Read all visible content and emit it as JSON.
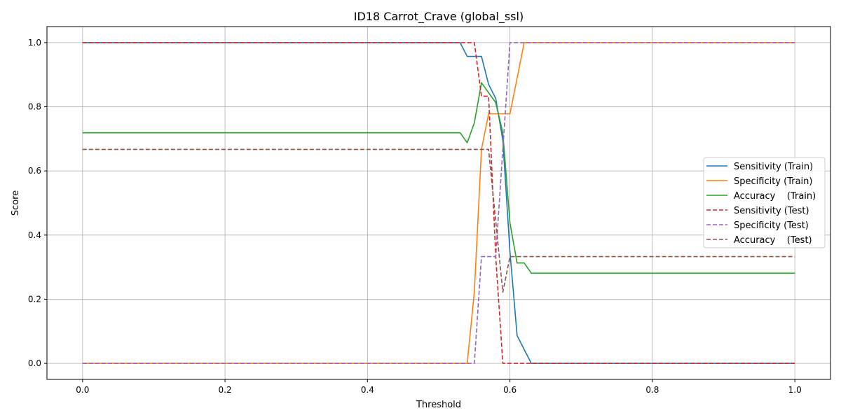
{
  "chart_data": {
    "type": "line",
    "title": "ID18 Carrot_Crave (global_ssl)",
    "xlabel": "Threshold",
    "ylabel": "Score",
    "xlim": [
      -0.05,
      1.05
    ],
    "ylim": [
      -0.05,
      1.05
    ],
    "xticks": [
      0.0,
      0.2,
      0.4,
      0.6,
      0.8,
      1.0
    ],
    "xtick_labels": [
      "0.0",
      "0.2",
      "0.4",
      "0.6",
      "0.8",
      "1.0"
    ],
    "yticks": [
      0.0,
      0.2,
      0.4,
      0.6,
      0.8,
      1.0
    ],
    "ytick_labels": [
      "0.0",
      "0.2",
      "0.4",
      "0.6",
      "0.8",
      "1.0"
    ],
    "grid": true,
    "legend_position": "center-right",
    "series": [
      {
        "name": "Sensitivity (Train)",
        "color": "#1f77b4",
        "dashed": false,
        "x": [
          0.0,
          0.53,
          0.54,
          0.55,
          0.56,
          0.57,
          0.58,
          0.59,
          0.6,
          0.61,
          0.62,
          0.63,
          1.0
        ],
        "y": [
          1.0,
          1.0,
          0.957,
          0.957,
          0.957,
          0.87,
          0.826,
          0.696,
          0.348,
          0.087,
          0.043,
          0.0,
          0.0
        ]
      },
      {
        "name": "Specificity (Train)",
        "color": "#ff7f0e",
        "dashed": false,
        "x": [
          0.0,
          0.54,
          0.55,
          0.56,
          0.57,
          0.58,
          0.59,
          0.6,
          0.61,
          0.62,
          1.0
        ],
        "y": [
          0.0,
          0.0,
          0.222,
          0.667,
          0.778,
          0.778,
          0.778,
          0.778,
          0.889,
          1.0,
          1.0
        ]
      },
      {
        "name": "Accuracy    (Train)",
        "color": "#2ca02c",
        "dashed": false,
        "x": [
          0.0,
          0.53,
          0.54,
          0.55,
          0.56,
          0.57,
          0.58,
          0.59,
          0.6,
          0.61,
          0.62,
          0.63,
          1.0
        ],
        "y": [
          0.719,
          0.719,
          0.688,
          0.75,
          0.875,
          0.844,
          0.813,
          0.719,
          0.438,
          0.313,
          0.313,
          0.281,
          0.281
        ]
      },
      {
        "name": "Sensitivity (Test)",
        "color": "#d62728",
        "dashed": true,
        "x": [
          0.0,
          0.55,
          0.56,
          0.57,
          0.58,
          0.59,
          1.0
        ],
        "y": [
          1.0,
          1.0,
          0.833,
          0.833,
          0.333,
          0.0,
          0.0
        ]
      },
      {
        "name": "Specificity (Test)",
        "color": "#9467bd",
        "dashed": true,
        "x": [
          0.0,
          0.55,
          0.56,
          0.57,
          0.58,
          0.59,
          0.6,
          1.0
        ],
        "y": [
          0.0,
          0.0,
          0.333,
          0.333,
          0.333,
          0.667,
          1.0,
          1.0
        ]
      },
      {
        "name": "Accuracy    (Test)",
        "color": "#8c564b",
        "dashed": true,
        "x": [
          0.0,
          0.57,
          0.58,
          0.59,
          0.6,
          1.0
        ],
        "y": [
          0.667,
          0.667,
          0.444,
          0.222,
          0.333,
          0.333
        ]
      }
    ]
  }
}
